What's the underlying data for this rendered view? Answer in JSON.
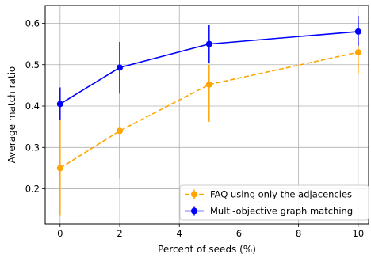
{
  "chart_data": {
    "type": "line",
    "xlabel": "Percent of seeds (%)",
    "ylabel": "Average match ratio",
    "xlim": [
      -0.5,
      10.35
    ],
    "ylim": [
      0.115,
      0.643
    ],
    "xticks": [
      0,
      2,
      4,
      6,
      8,
      10
    ],
    "yticks": [
      0.2,
      0.3,
      0.4,
      0.5,
      0.6
    ],
    "xtick_labels": [
      "0",
      "2",
      "4",
      "6",
      "8",
      "10"
    ],
    "ytick_labels": [
      "0.2",
      "0.3",
      "0.4",
      "0.5",
      "0.6"
    ],
    "grid": true,
    "legend_position": "lower-right",
    "series": [
      {
        "name": "FAQ using only the adjacencies",
        "color": "#FFA500",
        "line_style": "dashed",
        "marker": "circle",
        "x": [
          0,
          2,
          5,
          10
        ],
        "y": [
          0.25,
          0.34,
          0.452,
          0.53
        ],
        "err_low": [
          0.135,
          0.225,
          0.362,
          0.478
        ],
        "err_high": [
          0.366,
          0.43,
          0.5,
          0.545
        ]
      },
      {
        "name": "Multi-objective graph matching",
        "color": "#0000FF",
        "line_style": "solid",
        "marker": "circle",
        "x": [
          0,
          2,
          5,
          10
        ],
        "y": [
          0.405,
          0.493,
          0.55,
          0.58
        ],
        "err_low": [
          0.366,
          0.43,
          0.503,
          0.545
        ],
        "err_high": [
          0.445,
          0.555,
          0.597,
          0.618
        ]
      }
    ]
  }
}
